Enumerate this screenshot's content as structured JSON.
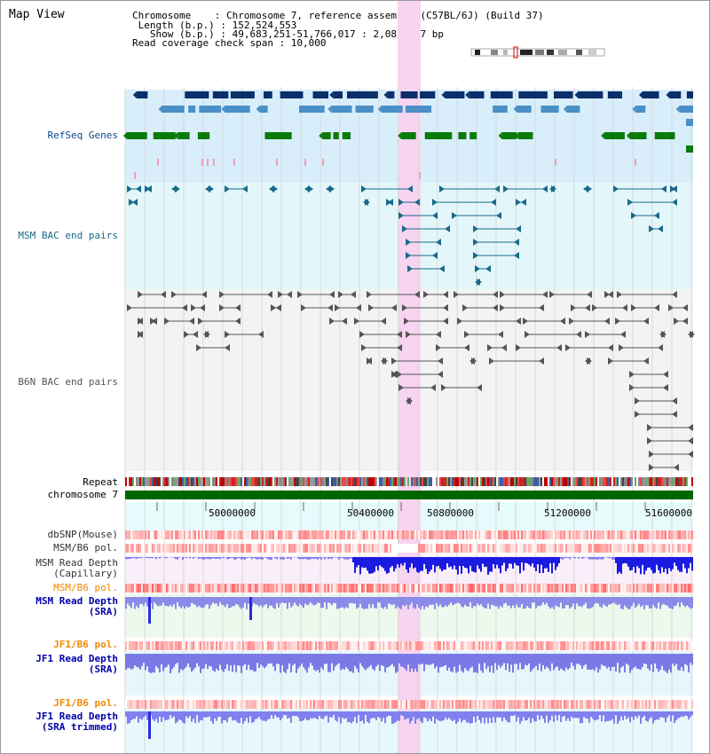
{
  "header": {
    "title": "Map View",
    "info_lines": [
      "Chromosome    : Chromosome 7, reference assembly (C57BL/6J) (Build 37)",
      " Length (b.p.) : 152,524,553",
      "   Show (b.p.) : 49,683,251-51,766,017 : 2,082,767 bp",
      "Read coverage check span : 10,000"
    ]
  },
  "ideogram": {
    "name": "chromosome-ideogram",
    "highlight_color": "#dd0000"
  },
  "highlight": {
    "color": "#f7d4f0"
  },
  "tracks": {
    "refseq": {
      "label": "RefSeq Genes",
      "color": "#0a4a8a",
      "gene_colors": [
        "#0a2f6b",
        "#4a8fc6",
        "#0a7a0a",
        "#f49bc0"
      ]
    },
    "msm_bac": {
      "label": "MSM BAC end pairs",
      "color": "#1a6a8a"
    },
    "b6n_bac": {
      "label": "B6N BAC end pairs",
      "color": "#555555"
    },
    "repeat": {
      "label": "Repeat"
    },
    "chromosome": {
      "label": "chromosome 7",
      "color": "#006600"
    },
    "dbsnp": {
      "label": "dbSNP(Mouse)"
    },
    "msm_b6_pol_1": {
      "label": "MSM/B6 pol."
    },
    "msm_depth_cap": {
      "label": "MSM Read Depth\n(Capillary)"
    },
    "msm_b6_pol_2": {
      "label": "MSM/B6 pol.",
      "color": "#ee8800"
    },
    "msm_depth_sra": {
      "label": "MSM Read Depth\n(SRA)",
      "color": "#0000aa"
    },
    "jf1_b6_pol_1": {
      "label": "JF1/B6 pol.",
      "color": "#ee8800"
    },
    "jf1_depth_sra": {
      "label": "JF1 Read Depth\n(SRA)",
      "color": "#0000aa"
    },
    "jf1_b6_pol_2": {
      "label": "JF1/B6 pol.",
      "color": "#ee8800"
    },
    "jf1_depth_trim": {
      "label": "JF1 Read Depth\n(SRA trimmed)",
      "color": "#0000aa"
    }
  },
  "axis": {
    "ticks": [
      "50000000",
      "50400000",
      "50800000",
      "51200000",
      "51600000"
    ]
  }
}
